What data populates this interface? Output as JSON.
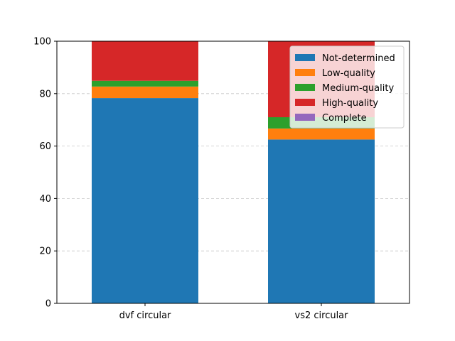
{
  "chart_data": {
    "type": "bar",
    "stacked": true,
    "categories": [
      "dvf circular",
      "vs2 circular"
    ],
    "series": [
      {
        "name": "Not-determined",
        "values": [
          78.3,
          62.5
        ],
        "color": "#1f77b4"
      },
      {
        "name": "Low-quality",
        "values": [
          4.4,
          4.2
        ],
        "color": "#ff7f0e"
      },
      {
        "name": "Medium-quality",
        "values": [
          2.2,
          4.3
        ],
        "color": "#2ca02c"
      },
      {
        "name": "High-quality",
        "values": [
          15.1,
          29.0
        ],
        "color": "#d62728"
      },
      {
        "name": "Complete",
        "values": [
          0,
          0
        ],
        "color": "#9467bd"
      }
    ],
    "ylim": [
      0,
      100
    ],
    "yticks": [
      0,
      20,
      40,
      60,
      80,
      100
    ],
    "grid": "y-dashed",
    "legend_position": "top-right",
    "title": "",
    "xlabel": "",
    "ylabel": ""
  }
}
